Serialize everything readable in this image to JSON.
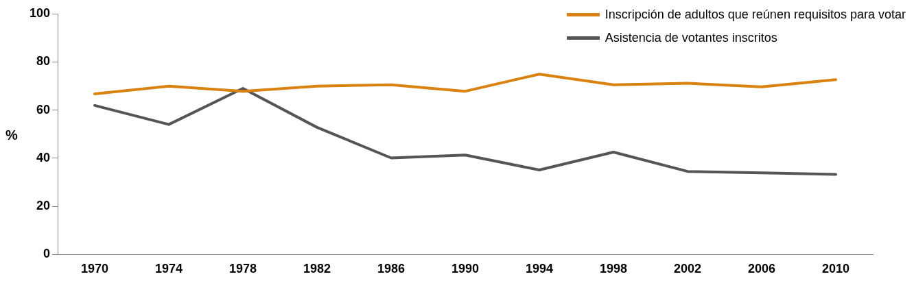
{
  "chart_data": {
    "type": "line",
    "ylabel": "%",
    "categories": [
      "1970",
      "1974",
      "1978",
      "1982",
      "1986",
      "1990",
      "1994",
      "1998",
      "2002",
      "2006",
      "2010"
    ],
    "series": [
      {
        "name": "Inscripción de adultos que reúnen requisitos para votar",
        "color": "#d9820f",
        "values": [
          66.7,
          69.9,
          67.8,
          69.9,
          70.5,
          67.8,
          74.9,
          70.5,
          71.1,
          69.6,
          72.6
        ]
      },
      {
        "name": "Asistencia de votantes inscritos",
        "color": "#555555",
        "values": [
          61.9,
          54,
          69,
          52.8,
          40.1,
          41.3,
          35.1,
          42.5,
          34.5,
          33.9,
          33.3
        ]
      }
    ],
    "ylim": [
      0,
      100
    ],
    "yticks": [
      0,
      20,
      40,
      60,
      80,
      100
    ],
    "grid": false,
    "legend": "top right",
    "marker": "none",
    "line_style": "solid"
  }
}
